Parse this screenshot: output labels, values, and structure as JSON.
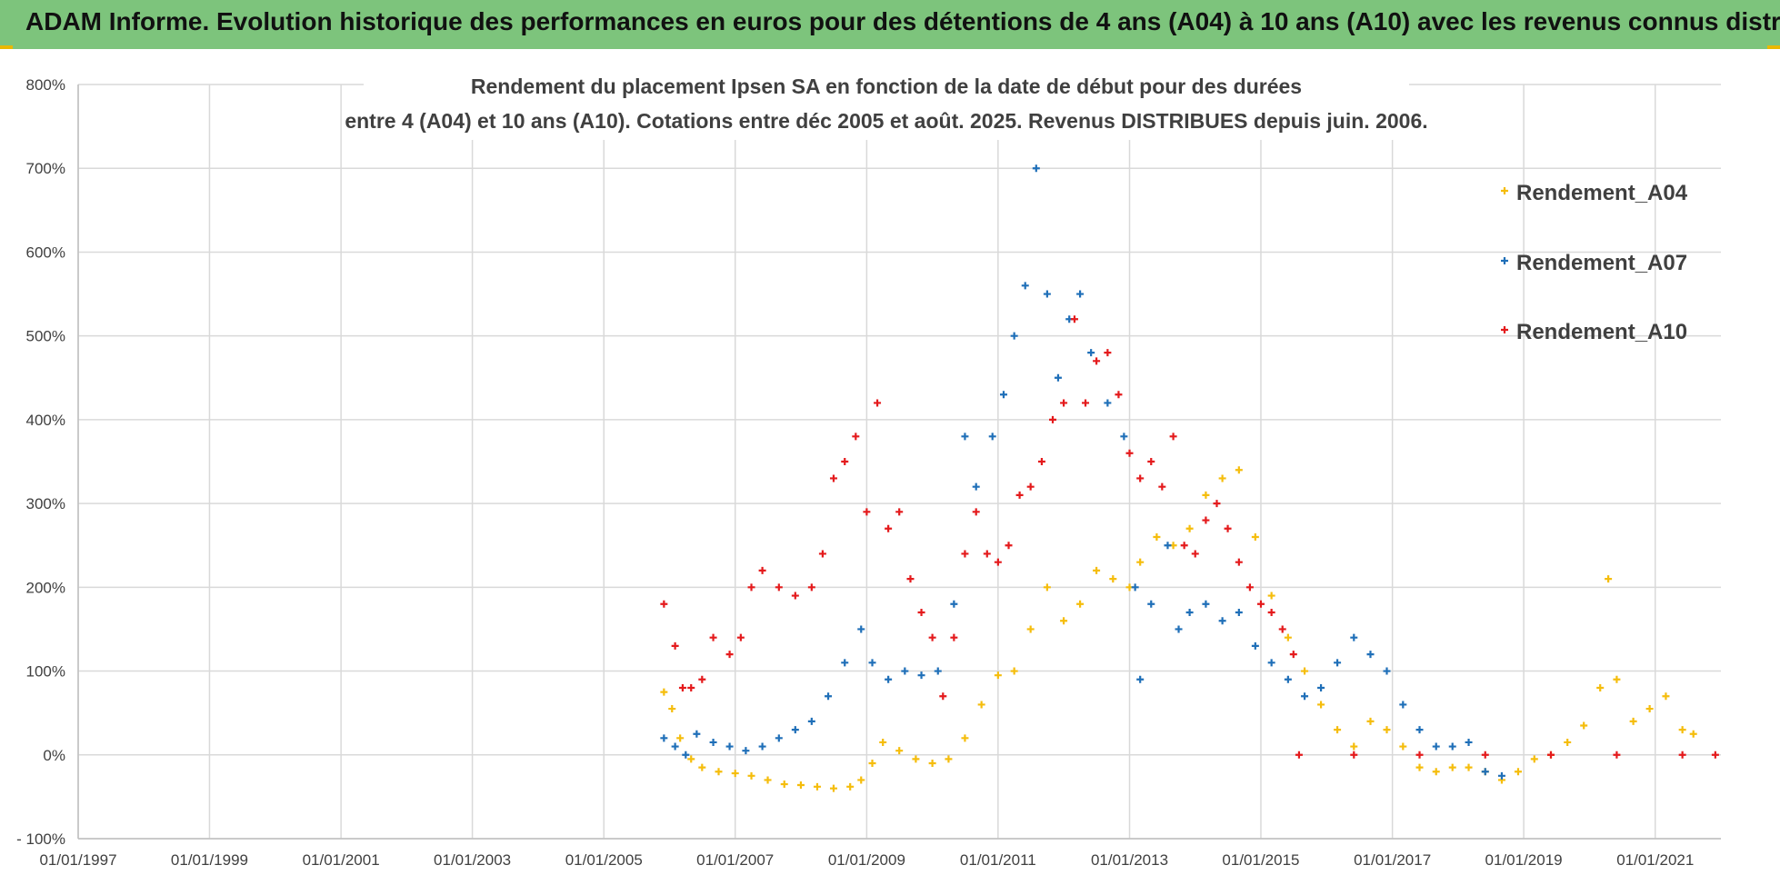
{
  "banner": {
    "title": "ADAM Informe. Evolution historique des performances en euros pour des détentions de 4 ans (A04) à 10 ans (A10) avec les revenus connus distribués"
  },
  "colors": {
    "banner": "#7dc47c",
    "A04": "#f5bd0c",
    "A07": "#1f6fb8",
    "A10": "#e41a1c"
  },
  "chart_data": {
    "type": "scatter",
    "title_line1": "Rendement du placement Ipsen SA en fonction de la date de début pour des durées",
    "title_line2": "entre 4 (A04) et 10 ans (A10). Cotations entre déc 2005 et août. 2025. Revenus DISTRIBUES depuis juin. 2006.",
    "ylim": [
      -100,
      800
    ],
    "yticks": [
      -100,
      0,
      100,
      200,
      300,
      400,
      500,
      600,
      700,
      800
    ],
    "ytick_labels": [
      "- 100%",
      "0%",
      "100%",
      "200%",
      "300%",
      "400%",
      "500%",
      "600%",
      "700%",
      "800%"
    ],
    "xlim": [
      "1997-01-01",
      "2022-01-01"
    ],
    "xtick_labels": [
      "01/01/1997",
      "01/01/1999",
      "01/01/2001",
      "01/01/2003",
      "01/01/2005",
      "01/01/2007",
      "01/01/2009",
      "01/01/2011",
      "01/01/2013",
      "01/01/2015",
      "01/01/2017",
      "01/01/2019",
      "01/01/2021"
    ],
    "xticks": [
      "1997-01-01",
      "1999-01-01",
      "2001-01-01",
      "2003-01-01",
      "2005-01-01",
      "2007-01-01",
      "2009-01-01",
      "2011-01-01",
      "2013-01-01",
      "2015-01-01",
      "2017-01-01",
      "2019-01-01",
      "2021-01-01"
    ],
    "grid": true,
    "legend_position": "top-right",
    "marker": "+",
    "series": [
      {
        "name": "Rendement_A04",
        "color": "#f5bd0c",
        "points": [
          [
            "2005-12-01",
            75
          ],
          [
            "2006-01-15",
            55
          ],
          [
            "2006-03-01",
            20
          ],
          [
            "2006-05-01",
            -5
          ],
          [
            "2006-07-01",
            -15
          ],
          [
            "2006-10-01",
            -20
          ],
          [
            "2007-01-01",
            -22
          ],
          [
            "2007-04-01",
            -25
          ],
          [
            "2007-07-01",
            -30
          ],
          [
            "2007-10-01",
            -35
          ],
          [
            "2008-01-01",
            -36
          ],
          [
            "2008-04-01",
            -38
          ],
          [
            "2008-07-01",
            -40
          ],
          [
            "2008-10-01",
            -38
          ],
          [
            "2008-12-01",
            -30
          ],
          [
            "2009-02-01",
            -10
          ],
          [
            "2009-04-01",
            15
          ],
          [
            "2009-07-01",
            5
          ],
          [
            "2009-10-01",
            -5
          ],
          [
            "2010-01-01",
            -10
          ],
          [
            "2010-04-01",
            -5
          ],
          [
            "2010-07-01",
            20
          ],
          [
            "2010-10-01",
            60
          ],
          [
            "2011-01-01",
            95
          ],
          [
            "2011-04-01",
            100
          ],
          [
            "2011-07-01",
            150
          ],
          [
            "2011-10-01",
            200
          ],
          [
            "2012-01-01",
            160
          ],
          [
            "2012-04-01",
            180
          ],
          [
            "2012-07-01",
            220
          ],
          [
            "2012-10-01",
            210
          ],
          [
            "2013-01-01",
            200
          ],
          [
            "2013-03-01",
            230
          ],
          [
            "2013-06-01",
            260
          ],
          [
            "2013-09-01",
            250
          ],
          [
            "2013-12-01",
            270
          ],
          [
            "2014-03-01",
            310
          ],
          [
            "2014-06-01",
            330
          ],
          [
            "2014-09-01",
            340
          ],
          [
            "2014-12-01",
            260
          ],
          [
            "2015-03-01",
            190
          ],
          [
            "2015-06-01",
            140
          ],
          [
            "2015-09-01",
            100
          ],
          [
            "2015-12-01",
            60
          ],
          [
            "2016-03-01",
            30
          ],
          [
            "2016-06-01",
            10
          ],
          [
            "2016-09-01",
            40
          ],
          [
            "2016-12-01",
            30
          ],
          [
            "2017-03-01",
            10
          ],
          [
            "2017-06-01",
            -15
          ],
          [
            "2017-09-01",
            -20
          ],
          [
            "2017-12-01",
            -15
          ],
          [
            "2018-03-01",
            -15
          ],
          [
            "2018-06-01",
            -20
          ],
          [
            "2018-09-01",
            -30
          ],
          [
            "2018-12-01",
            -20
          ],
          [
            "2019-03-01",
            -5
          ],
          [
            "2019-06-01",
            0
          ],
          [
            "2019-09-01",
            15
          ],
          [
            "2019-12-01",
            35
          ],
          [
            "2020-03-01",
            80
          ],
          [
            "2020-04-15",
            210
          ],
          [
            "2020-06-01",
            90
          ],
          [
            "2020-09-01",
            40
          ],
          [
            "2020-12-01",
            55
          ],
          [
            "2021-03-01",
            70
          ],
          [
            "2021-06-01",
            30
          ],
          [
            "2021-08-01",
            25
          ]
        ]
      },
      {
        "name": "Rendement_A07",
        "color": "#1f6fb8",
        "points": [
          [
            "2005-12-01",
            20
          ],
          [
            "2006-02-01",
            10
          ],
          [
            "2006-04-01",
            0
          ],
          [
            "2006-06-01",
            25
          ],
          [
            "2006-09-01",
            15
          ],
          [
            "2006-12-01",
            10
          ],
          [
            "2007-03-01",
            5
          ],
          [
            "2007-06-01",
            10
          ],
          [
            "2007-09-01",
            20
          ],
          [
            "2007-12-01",
            30
          ],
          [
            "2008-03-01",
            40
          ],
          [
            "2008-06-01",
            70
          ],
          [
            "2008-09-01",
            110
          ],
          [
            "2008-12-01",
            150
          ],
          [
            "2009-02-01",
            110
          ],
          [
            "2009-05-01",
            90
          ],
          [
            "2009-08-01",
            100
          ],
          [
            "2009-11-01",
            95
          ],
          [
            "2010-02-01",
            100
          ],
          [
            "2010-05-01",
            180
          ],
          [
            "2010-07-01",
            380
          ],
          [
            "2010-09-01",
            320
          ],
          [
            "2010-12-01",
            380
          ],
          [
            "2011-02-01",
            430
          ],
          [
            "2011-04-01",
            500
          ],
          [
            "2011-06-01",
            560
          ],
          [
            "2011-08-01",
            700
          ],
          [
            "2011-10-01",
            550
          ],
          [
            "2011-12-01",
            450
          ],
          [
            "2012-02-01",
            520
          ],
          [
            "2012-04-01",
            550
          ],
          [
            "2012-06-01",
            480
          ],
          [
            "2012-09-01",
            420
          ],
          [
            "2012-12-01",
            380
          ],
          [
            "2013-02-01",
            200
          ],
          [
            "2013-03-01",
            90
          ],
          [
            "2013-05-01",
            180
          ],
          [
            "2013-08-01",
            250
          ],
          [
            "2013-10-01",
            150
          ],
          [
            "2013-12-01",
            170
          ],
          [
            "2014-03-01",
            180
          ],
          [
            "2014-06-01",
            160
          ],
          [
            "2014-09-01",
            170
          ],
          [
            "2014-12-01",
            130
          ],
          [
            "2015-03-01",
            110
          ],
          [
            "2015-06-01",
            90
          ],
          [
            "2015-09-01",
            70
          ],
          [
            "2015-12-01",
            80
          ],
          [
            "2016-03-01",
            110
          ],
          [
            "2016-06-01",
            140
          ],
          [
            "2016-09-01",
            120
          ],
          [
            "2016-12-01",
            100
          ],
          [
            "2017-03-01",
            60
          ],
          [
            "2017-06-01",
            30
          ],
          [
            "2017-09-01",
            10
          ],
          [
            "2017-12-01",
            10
          ],
          [
            "2018-03-01",
            15
          ],
          [
            "2018-06-01",
            -20
          ],
          [
            "2018-09-01",
            -25
          ]
        ]
      },
      {
        "name": "Rendement_A10",
        "color": "#e41a1c",
        "points": [
          [
            "2005-12-01",
            180
          ],
          [
            "2006-02-01",
            130
          ],
          [
            "2006-03-15",
            80
          ],
          [
            "2006-05-01",
            80
          ],
          [
            "2006-07-01",
            90
          ],
          [
            "2006-09-01",
            140
          ],
          [
            "2006-12-01",
            120
          ],
          [
            "2007-02-01",
            140
          ],
          [
            "2007-04-01",
            200
          ],
          [
            "2007-06-01",
            220
          ],
          [
            "2007-09-01",
            200
          ],
          [
            "2007-12-01",
            190
          ],
          [
            "2008-03-01",
            200
          ],
          [
            "2008-05-01",
            240
          ],
          [
            "2008-07-01",
            330
          ],
          [
            "2008-09-01",
            350
          ],
          [
            "2008-11-01",
            380
          ],
          [
            "2009-01-01",
            290
          ],
          [
            "2009-03-01",
            420
          ],
          [
            "2009-05-01",
            270
          ],
          [
            "2009-07-01",
            290
          ],
          [
            "2009-09-01",
            210
          ],
          [
            "2009-11-01",
            170
          ],
          [
            "2010-01-01",
            140
          ],
          [
            "2010-03-01",
            70
          ],
          [
            "2010-05-01",
            140
          ],
          [
            "2010-07-01",
            240
          ],
          [
            "2010-09-01",
            290
          ],
          [
            "2010-11-01",
            240
          ],
          [
            "2011-01-01",
            230
          ],
          [
            "2011-03-01",
            250
          ],
          [
            "2011-05-01",
            310
          ],
          [
            "2011-07-01",
            320
          ],
          [
            "2011-09-01",
            350
          ],
          [
            "2011-11-01",
            400
          ],
          [
            "2012-01-01",
            420
          ],
          [
            "2012-03-01",
            520
          ],
          [
            "2012-05-01",
            420
          ],
          [
            "2012-07-01",
            470
          ],
          [
            "2012-09-01",
            480
          ],
          [
            "2012-11-01",
            430
          ],
          [
            "2013-01-01",
            360
          ],
          [
            "2013-03-01",
            330
          ],
          [
            "2013-05-01",
            350
          ],
          [
            "2013-07-01",
            320
          ],
          [
            "2013-09-01",
            380
          ],
          [
            "2013-11-01",
            250
          ],
          [
            "2014-01-01",
            240
          ],
          [
            "2014-03-01",
            280
          ],
          [
            "2014-05-01",
            300
          ],
          [
            "2014-07-01",
            270
          ],
          [
            "2014-09-01",
            230
          ],
          [
            "2014-11-01",
            200
          ],
          [
            "2015-01-01",
            180
          ],
          [
            "2015-03-01",
            170
          ],
          [
            "2015-05-01",
            150
          ],
          [
            "2015-07-01",
            120
          ],
          [
            "2015-08-01",
            0
          ],
          [
            "2016-06-01",
            0
          ],
          [
            "2017-06-01",
            0
          ],
          [
            "2018-06-01",
            0
          ],
          [
            "2019-06-01",
            0
          ],
          [
            "2020-06-01",
            0
          ],
          [
            "2021-06-01",
            0
          ],
          [
            "2021-12-01",
            0
          ]
        ]
      }
    ]
  }
}
